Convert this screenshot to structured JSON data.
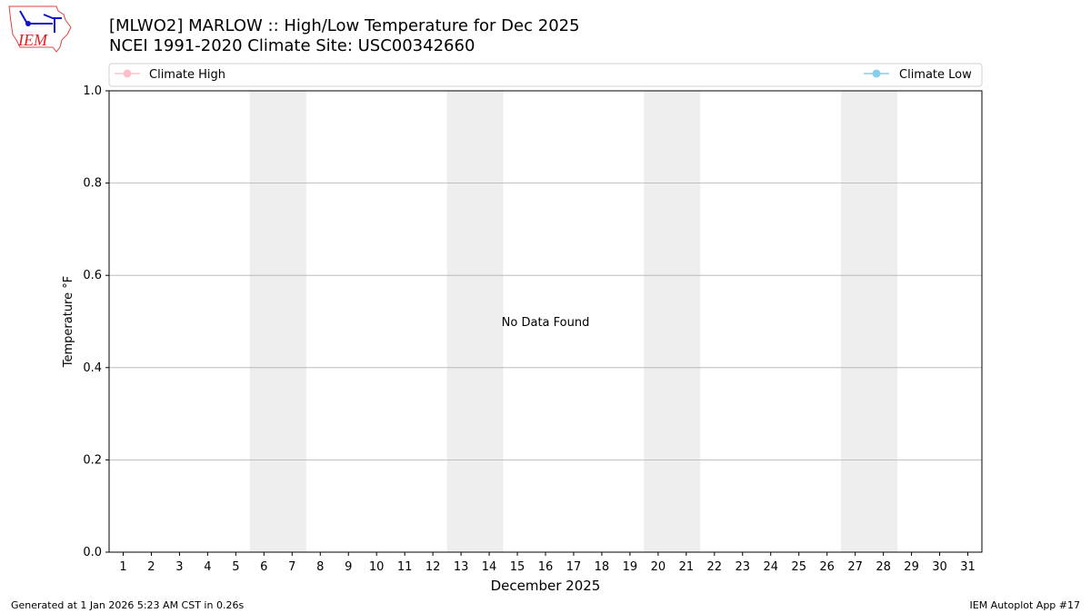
{
  "logo": {
    "text": "IEM"
  },
  "title_line1": "[MLWO2] MARLOW :: High/Low Temperature for Dec 2025",
  "title_line2": "NCEI 1991-2020 Climate Site: USC00342660",
  "footer_left": "Generated at 1 Jan 2026 5:23 AM CST in 0.26s",
  "footer_right": "IEM Autoplot App #17",
  "chart_data": {
    "type": "line",
    "xlabel": "December 2025",
    "ylabel": "Temperature °F",
    "xlim": [
      0.5,
      31.5
    ],
    "ylim": [
      0,
      1
    ],
    "x_ticks": [
      1,
      2,
      3,
      4,
      5,
      6,
      7,
      8,
      9,
      10,
      11,
      12,
      13,
      14,
      15,
      16,
      17,
      18,
      19,
      20,
      21,
      22,
      23,
      24,
      25,
      26,
      27,
      28,
      29,
      30,
      31
    ],
    "y_ticks": [
      "0.0",
      "0.2",
      "0.4",
      "0.6",
      "0.8",
      "1.0"
    ],
    "grid": "horizontal",
    "weekend_shading": [
      [
        6,
        7
      ],
      [
        13,
        14
      ],
      [
        20,
        21
      ],
      [
        27,
        28
      ]
    ],
    "annotation": "No Data Found",
    "legend_placement": "top",
    "series": [
      {
        "name": "Climate High",
        "color": "#ffc0cb",
        "values": []
      },
      {
        "name": "Climate Low",
        "color": "#87ceeb",
        "values": []
      }
    ]
  }
}
